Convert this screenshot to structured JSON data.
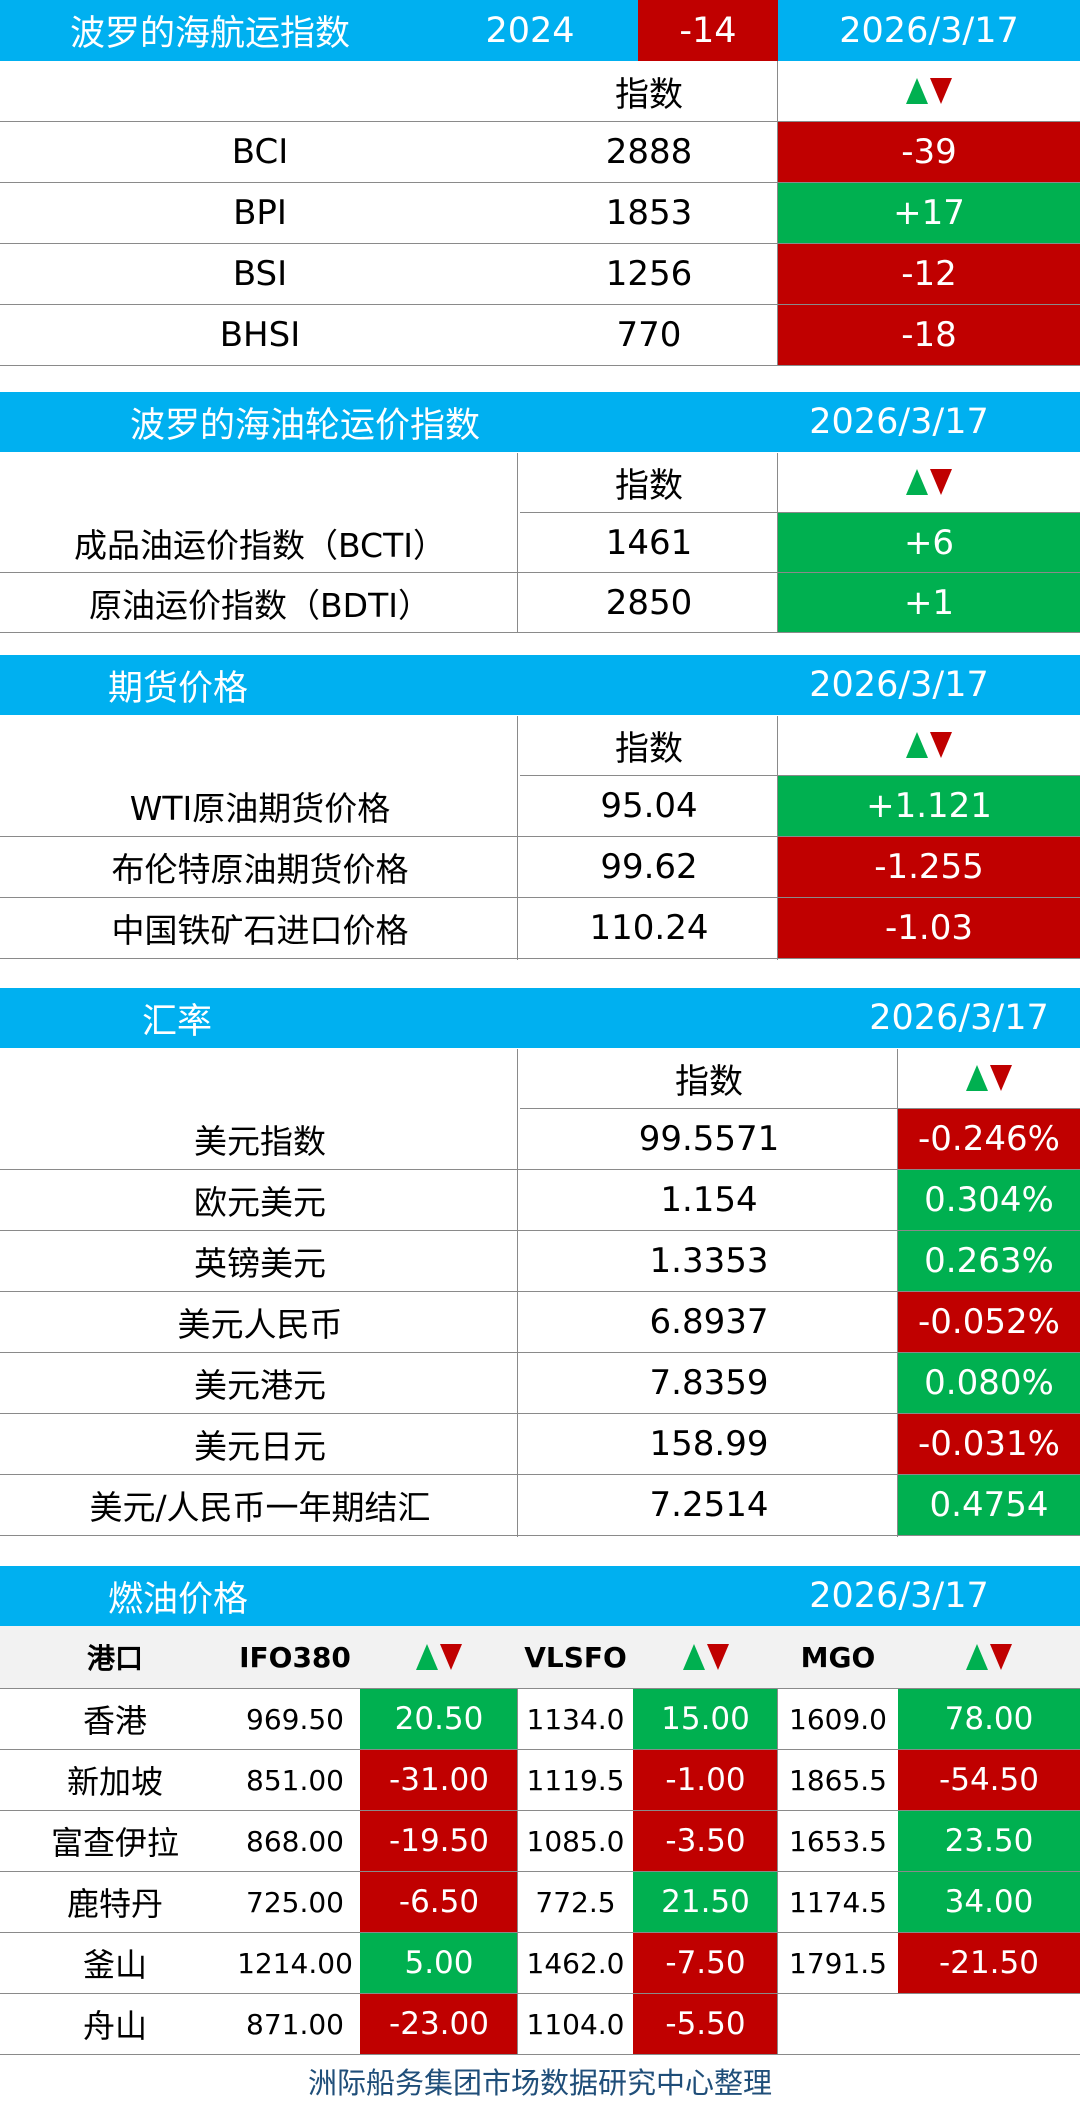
{
  "colors": {
    "header": "#00b0f0",
    "up": "#00b050",
    "down": "#c00000",
    "grid": "#8a8a8a",
    "footer_text": "#1f4e79"
  },
  "icons": {
    "trend": "up-down-triangle-icon"
  },
  "bdi": {
    "title": "波罗的海航运指数",
    "year": "2024",
    "year_change": "-14",
    "date": "2026/3/17",
    "col_index": "指数",
    "rows": [
      {
        "name": "BCI",
        "value": "2888",
        "change": "-39",
        "dir": "down"
      },
      {
        "name": "BPI",
        "value": "1853",
        "change": "+17",
        "dir": "up"
      },
      {
        "name": "BSI",
        "value": "1256",
        "change": "-12",
        "dir": "down"
      },
      {
        "name": "BHSI",
        "value": "770",
        "change": "-18",
        "dir": "down"
      }
    ]
  },
  "tanker": {
    "title": "波罗的海油轮运价指数",
    "date": "2026/3/17",
    "col_index": "指数",
    "rows": [
      {
        "name": "成品油运价指数（BCTI）",
        "value": "1461",
        "change": "+6",
        "dir": "up"
      },
      {
        "name": "原油运价指数（BDTI）",
        "value": "2850",
        "change": "+1",
        "dir": "up"
      }
    ]
  },
  "futures": {
    "title": "期货价格",
    "date": "2026/3/17",
    "col_index": "指数",
    "rows": [
      {
        "name": "WTI原油期货价格",
        "value": "95.04",
        "change": "+1.121",
        "dir": "up"
      },
      {
        "name": "布伦特原油期货价格",
        "value": "99.62",
        "change": "-1.255",
        "dir": "down"
      },
      {
        "name": "中国铁矿石进口价格",
        "value": "110.24",
        "change": "-1.03",
        "dir": "down"
      }
    ]
  },
  "fx": {
    "title": "汇率",
    "date": "2026/3/17",
    "col_index": "指数",
    "rows": [
      {
        "name": "美元指数",
        "value": "99.5571",
        "change": "-0.246%",
        "dir": "down"
      },
      {
        "name": "欧元美元",
        "value": "1.154",
        "change": "0.304%",
        "dir": "up"
      },
      {
        "name": "英镑美元",
        "value": "1.3353",
        "change": "0.263%",
        "dir": "up"
      },
      {
        "name": "美元人民币",
        "value": "6.8937",
        "change": "-0.052%",
        "dir": "down"
      },
      {
        "name": "美元港元",
        "value": "7.8359",
        "change": "0.080%",
        "dir": "up"
      },
      {
        "name": "美元日元",
        "value": "158.99",
        "change": "-0.031%",
        "dir": "down"
      },
      {
        "name": "美元/人民币一年期结汇",
        "value": "7.2514",
        "change": "0.4754",
        "dir": "up"
      }
    ]
  },
  "fuel": {
    "title": "燃油价格",
    "date": "2026/3/17",
    "headers": {
      "port": "港口",
      "ifo": "IFO380",
      "vlsfo": "VLSFO",
      "mgo": "MGO"
    },
    "rows": [
      {
        "port": "香港",
        "ifo": "969.50",
        "ifo_chg": "20.50",
        "ifo_dir": "up",
        "vlsfo": "1134.0",
        "vlsfo_chg": "15.00",
        "vlsfo_dir": "up",
        "mgo": "1609.0",
        "mgo_chg": "78.00",
        "mgo_dir": "up"
      },
      {
        "port": "新加坡",
        "ifo": "851.00",
        "ifo_chg": "-31.00",
        "ifo_dir": "down",
        "vlsfo": "1119.5",
        "vlsfo_chg": "-1.00",
        "vlsfo_dir": "down",
        "mgo": "1865.5",
        "mgo_chg": "-54.50",
        "mgo_dir": "down"
      },
      {
        "port": "富查伊拉",
        "ifo": "868.00",
        "ifo_chg": "-19.50",
        "ifo_dir": "down",
        "vlsfo": "1085.0",
        "vlsfo_chg": "-3.50",
        "vlsfo_dir": "down",
        "mgo": "1653.5",
        "mgo_chg": "23.50",
        "mgo_dir": "up"
      },
      {
        "port": "鹿特丹",
        "ifo": "725.00",
        "ifo_chg": "-6.50",
        "ifo_dir": "down",
        "vlsfo": "772.5",
        "vlsfo_chg": "21.50",
        "vlsfo_dir": "up",
        "mgo": "1174.5",
        "mgo_chg": "34.00",
        "mgo_dir": "up"
      },
      {
        "port": "釜山",
        "ifo": "1214.00",
        "ifo_chg": "5.00",
        "ifo_dir": "up",
        "vlsfo": "1462.0",
        "vlsfo_chg": "-7.50",
        "vlsfo_dir": "down",
        "mgo": "1791.5",
        "mgo_chg": "-21.50",
        "mgo_dir": "down"
      },
      {
        "port": "舟山",
        "ifo": "871.00",
        "ifo_chg": "-23.00",
        "ifo_dir": "down",
        "vlsfo": "1104.0",
        "vlsfo_chg": "-5.50",
        "vlsfo_dir": "down",
        "mgo": "",
        "mgo_chg": "",
        "mgo_dir": ""
      }
    ]
  },
  "footer": "洲际船务集团市场数据研究中心整理"
}
